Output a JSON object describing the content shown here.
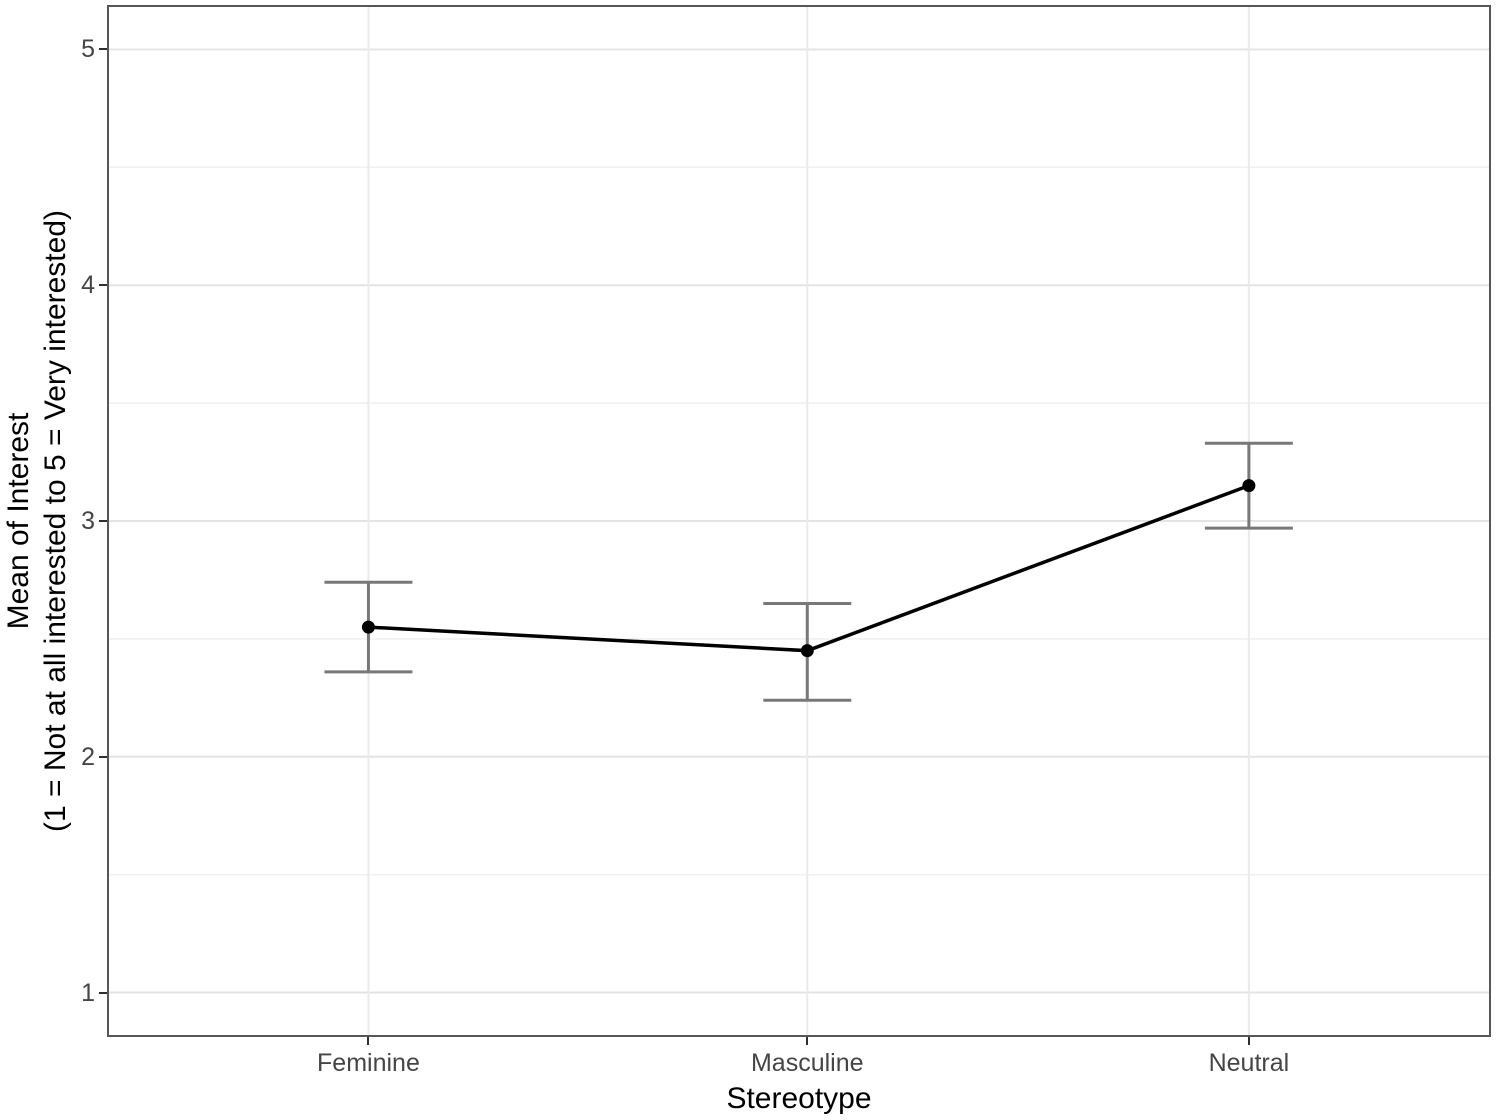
{
  "chart_data": {
    "type": "line",
    "title": "",
    "xlabel": "Stereotype",
    "ylabel_line1": "Mean of Interest",
    "ylabel_line2": "(1 = Not at all interested to 5 = Very interested)",
    "categories": [
      "Feminine",
      "Masculine",
      "Neutral"
    ],
    "series": [
      {
        "name": "Mean of Interest",
        "values": [
          2.55,
          2.45,
          3.15
        ],
        "error_lower": [
          2.36,
          2.24,
          2.97
        ],
        "error_upper": [
          2.74,
          2.65,
          3.33
        ]
      }
    ],
    "y_ticks": [
      1,
      2,
      3,
      4,
      5
    ],
    "y_minor_ticks": [
      1.5,
      2.5,
      3.5,
      4.5
    ],
    "ylim": [
      0.82,
      5.18
    ],
    "x_positions": [
      0.188,
      0.506,
      0.826
    ],
    "grid": true,
    "legend": false,
    "colors": {
      "line": "#000000",
      "point": "#000000",
      "error_bar": "#787878",
      "panel_border": "#56575a",
      "grid_major": "#e4e4e4",
      "grid_minor": "#f1f1f1",
      "grid_vertical": "#eaeaea",
      "tick_mark": "#2f2f2f",
      "tick_label": "#454545",
      "axis_title": "#000000",
      "background": "#ffffff"
    }
  }
}
